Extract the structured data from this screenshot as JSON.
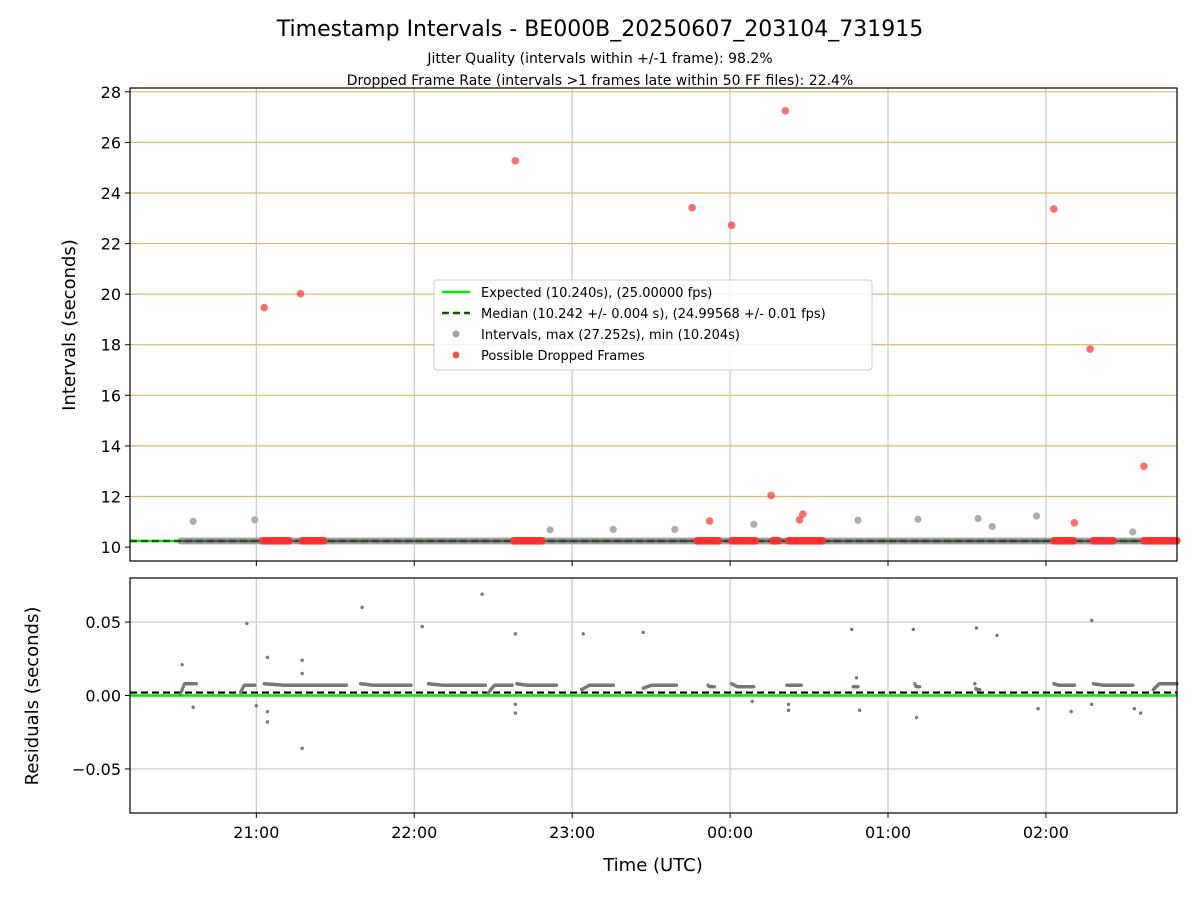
{
  "chart_data": [
    {
      "type": "scatter",
      "title": "Timestamp Intervals - BE000B_20250607_203104_731915",
      "subtitle_lines": [
        "Jitter Quality (intervals within +/-1 frame): 98.2%",
        "Dropped Frame Rate (intervals >1 frames late within 50 FF files): 22.4%"
      ],
      "ylabel": "Intervals (seconds)",
      "ylim": [
        9.45,
        28.15
      ],
      "yticks": [
        "10",
        "12",
        "14",
        "16",
        "18",
        "20",
        "22",
        "24",
        "26",
        "28"
      ],
      "xlim_hours": [
        20.2,
        26.83
      ],
      "x_note": "time of night in hours after midnight of 2025-06-07 UTC; values > 24 are the next day",
      "xticks": [
        {
          "h": 21,
          "label": "21:00"
        },
        {
          "h": 22,
          "label": "22:00"
        },
        {
          "h": 23,
          "label": "23:00"
        },
        {
          "h": 24,
          "label": "00:00"
        },
        {
          "h": 25,
          "label": "01:00"
        },
        {
          "h": 26,
          "label": "02:00"
        }
      ],
      "grid": true,
      "yellow_gridlines": [
        10.24,
        12.0,
        14.0,
        16.0,
        18.0,
        20.0,
        22.0,
        24.0,
        26.0,
        28.0
      ],
      "legend_position": "center",
      "legend": [
        {
          "label": "Expected (10.240s), (25.00000 fps)",
          "style": "solid-line",
          "color": "#00ee00"
        },
        {
          "label": "Median (10.242 +/- 0.004 s), (24.99568 +/- 0.01 fps)",
          "style": "dashed-line",
          "color": "#006400"
        },
        {
          "label": "Intervals, max (27.252s), min (10.204s)",
          "style": "marker",
          "color": "#a0a0a0"
        },
        {
          "label": "Possible Dropped Frames",
          "style": "marker",
          "color": "#ff5050"
        }
      ],
      "series": [
        {
          "name": "Expected (10.240s), (25.00000 fps)",
          "kind": "hline",
          "y": 10.24
        },
        {
          "name": "Median (10.242 +/- 0.004 s), (24.99568 +/- 0.01 fps)",
          "kind": "hline",
          "y": 10.242
        },
        {
          "name": "Intervals, max (27.252s), min (10.204s)",
          "kind": "scatter",
          "dense_band": {
            "y": 10.24,
            "x_from": 20.52,
            "x_to": 26.83
          },
          "points": [
            {
              "x": 20.6,
              "y": 11.02
            },
            {
              "x": 20.99,
              "y": 11.08
            },
            {
              "x": 22.86,
              "y": 10.68
            },
            {
              "x": 23.26,
              "y": 10.7
            },
            {
              "x": 23.65,
              "y": 10.7
            },
            {
              "x": 24.15,
              "y": 10.9
            },
            {
              "x": 24.81,
              "y": 11.06
            },
            {
              "x": 25.19,
              "y": 11.1
            },
            {
              "x": 25.57,
              "y": 11.13
            },
            {
              "x": 25.66,
              "y": 10.81
            },
            {
              "x": 25.94,
              "y": 11.23
            },
            {
              "x": 26.55,
              "y": 10.6
            }
          ]
        },
        {
          "name": "Possible Dropped Frames",
          "kind": "scatter",
          "points": [
            {
              "x": 21.05,
              "y": 19.47
            },
            {
              "x": 21.28,
              "y": 20.02
            },
            {
              "x": 22.64,
              "y": 25.27
            },
            {
              "x": 23.76,
              "y": 23.42
            },
            {
              "x": 24.01,
              "y": 22.72
            },
            {
              "x": 24.35,
              "y": 27.25
            },
            {
              "x": 26.05,
              "y": 23.37
            },
            {
              "x": 26.28,
              "y": 17.83
            },
            {
              "x": 26.62,
              "y": 13.2
            },
            {
              "x": 24.26,
              "y": 12.04
            },
            {
              "x": 23.87,
              "y": 11.03
            },
            {
              "x": 24.44,
              "y": 11.08
            },
            {
              "x": 24.46,
              "y": 11.3
            },
            {
              "x": 26.18,
              "y": 10.96
            }
          ],
          "clusters": [
            {
              "x_from": 21.04,
              "x_to": 21.21,
              "y": 10.25
            },
            {
              "x_from": 21.29,
              "x_to": 21.43,
              "y": 10.25
            },
            {
              "x_from": 22.63,
              "x_to": 22.81,
              "y": 10.25
            },
            {
              "x_from": 23.79,
              "x_to": 23.93,
              "y": 10.25
            },
            {
              "x_from": 24.01,
              "x_to": 24.16,
              "y": 10.25
            },
            {
              "x_from": 24.27,
              "x_to": 24.31,
              "y": 10.25
            },
            {
              "x_from": 24.37,
              "x_to": 24.59,
              "y": 10.25
            },
            {
              "x_from": 26.05,
              "x_to": 26.18,
              "y": 10.25
            },
            {
              "x_from": 26.3,
              "x_to": 26.43,
              "y": 10.25
            },
            {
              "x_from": 26.62,
              "x_to": 26.83,
              "y": 10.25
            }
          ]
        }
      ]
    },
    {
      "type": "scatter",
      "xlabel": "Time (UTC)",
      "ylabel": "Residuals (seconds)",
      "ylim": [
        -0.08,
        0.08
      ],
      "yticks": [
        "−0.05",
        "0.00",
        "0.05"
      ],
      "grid": true,
      "series": [
        {
          "name": "Expected",
          "kind": "hline",
          "y": 0.0
        },
        {
          "name": "Median",
          "kind": "hline",
          "y": 0.002
        },
        {
          "name": "Residuals",
          "kind": "scatter",
          "segments": [
            {
              "x_from": 20.52,
              "x_to": 20.62,
              "y_start": 0.001,
              "y_end": 0.008
            },
            {
              "x_from": 20.9,
              "x_to": 20.99,
              "y_start": 0.002,
              "y_end": 0.007
            },
            {
              "x_from": 21.05,
              "x_to": 21.57,
              "y_start": 0.008,
              "y_end": 0.007
            },
            {
              "x_from": 21.66,
              "x_to": 21.98,
              "y_start": 0.008,
              "y_end": 0.007
            },
            {
              "x_from": 22.09,
              "x_to": 22.45,
              "y_start": 0.008,
              "y_end": 0.007
            },
            {
              "x_from": 22.47,
              "x_to": 22.62,
              "y_start": 0.002,
              "y_end": 0.007
            },
            {
              "x_from": 22.65,
              "x_to": 22.9,
              "y_start": 0.008,
              "y_end": 0.007
            },
            {
              "x_from": 23.06,
              "x_to": 23.26,
              "y_start": 0.004,
              "y_end": 0.007
            },
            {
              "x_from": 23.45,
              "x_to": 23.66,
              "y_start": 0.005,
              "y_end": 0.007
            },
            {
              "x_from": 23.86,
              "x_to": 23.9,
              "y_start": 0.007,
              "y_end": 0.006
            },
            {
              "x_from": 24.01,
              "x_to": 24.15,
              "y_start": 0.008,
              "y_end": 0.006
            },
            {
              "x_from": 24.36,
              "x_to": 24.45,
              "y_start": 0.007,
              "y_end": 0.007
            },
            {
              "x_from": 24.78,
              "x_to": 24.81,
              "y_start": 0.006,
              "y_end": 0.006
            },
            {
              "x_from": 25.17,
              "x_to": 25.2,
              "y_start": 0.008,
              "y_end": 0.006
            },
            {
              "x_from": 25.55,
              "x_to": 25.58,
              "y_start": 0.008,
              "y_end": 0.004
            },
            {
              "x_from": 26.05,
              "x_to": 26.18,
              "y_start": 0.008,
              "y_end": 0.007
            },
            {
              "x_from": 26.3,
              "x_to": 26.55,
              "y_start": 0.008,
              "y_end": 0.007
            },
            {
              "x_from": 26.68,
              "x_to": 26.83,
              "y_start": 0.004,
              "y_end": 0.008
            }
          ],
          "points": [
            {
              "x": 20.53,
              "y": 0.021
            },
            {
              "x": 20.94,
              "y": 0.049
            },
            {
              "x": 21.07,
              "y": 0.026
            },
            {
              "x": 21.29,
              "y": 0.024
            },
            {
              "x": 21.29,
              "y": 0.015
            },
            {
              "x": 21.29,
              "y": -0.036
            },
            {
              "x": 21.07,
              "y": -0.018
            },
            {
              "x": 21.07,
              "y": -0.011
            },
            {
              "x": 21.0,
              "y": -0.007
            },
            {
              "x": 20.6,
              "y": -0.008
            },
            {
              "x": 21.67,
              "y": 0.06
            },
            {
              "x": 22.05,
              "y": 0.047
            },
            {
              "x": 22.43,
              "y": 0.069
            },
            {
              "x": 22.64,
              "y": 0.042
            },
            {
              "x": 22.64,
              "y": -0.012
            },
            {
              "x": 22.64,
              "y": -0.006
            },
            {
              "x": 23.07,
              "y": 0.042
            },
            {
              "x": 23.45,
              "y": 0.043
            },
            {
              "x": 24.14,
              "y": -0.004
            },
            {
              "x": 24.37,
              "y": -0.01
            },
            {
              "x": 24.37,
              "y": -0.006
            },
            {
              "x": 24.77,
              "y": 0.045
            },
            {
              "x": 24.8,
              "y": 0.012
            },
            {
              "x": 24.82,
              "y": -0.01
            },
            {
              "x": 25.16,
              "y": 0.045
            },
            {
              "x": 25.18,
              "y": -0.015
            },
            {
              "x": 25.56,
              "y": 0.046
            },
            {
              "x": 25.69,
              "y": 0.041
            },
            {
              "x": 25.95,
              "y": -0.009
            },
            {
              "x": 26.16,
              "y": -0.011
            },
            {
              "x": 26.29,
              "y": 0.051
            },
            {
              "x": 26.29,
              "y": -0.006
            },
            {
              "x": 26.56,
              "y": -0.009
            },
            {
              "x": 26.6,
              "y": -0.012
            }
          ]
        }
      ]
    }
  ]
}
